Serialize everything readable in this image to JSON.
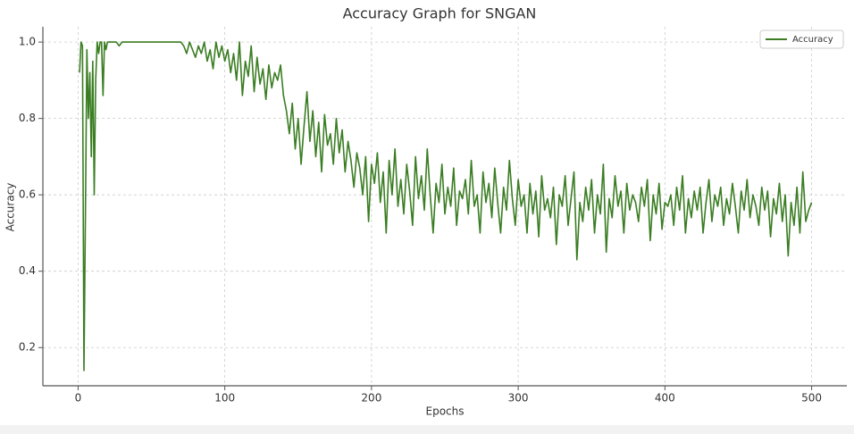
{
  "chart_data": {
    "type": "line",
    "title": "Accuracy Graph for SNGAN",
    "xlabel": "Epochs",
    "ylabel": "Accuracy",
    "x": [
      1,
      2,
      3,
      4,
      5,
      6,
      7,
      8,
      9,
      10,
      11,
      12,
      13,
      14,
      15,
      16,
      17,
      18,
      19,
      20,
      22,
      24,
      26,
      28,
      30,
      32,
      34,
      36,
      38,
      40,
      42,
      44,
      46,
      48,
      50,
      52,
      54,
      56,
      58,
      60,
      62,
      64,
      66,
      68,
      70,
      72,
      74,
      76,
      78,
      80,
      82,
      84,
      86,
      88,
      90,
      92,
      94,
      96,
      98,
      100,
      102,
      104,
      106,
      108,
      110,
      112,
      114,
      116,
      118,
      120,
      122,
      124,
      126,
      128,
      130,
      132,
      134,
      136,
      138,
      140,
      142,
      144,
      146,
      148,
      150,
      152,
      154,
      156,
      158,
      160,
      162,
      164,
      166,
      168,
      170,
      172,
      174,
      176,
      178,
      180,
      182,
      184,
      186,
      188,
      190,
      192,
      194,
      196,
      198,
      200,
      202,
      204,
      206,
      208,
      210,
      212,
      214,
      216,
      218,
      220,
      222,
      224,
      226,
      228,
      230,
      232,
      234,
      236,
      238,
      240,
      242,
      244,
      246,
      248,
      250,
      252,
      254,
      256,
      258,
      260,
      262,
      264,
      266,
      268,
      270,
      272,
      274,
      276,
      278,
      280,
      282,
      284,
      286,
      288,
      290,
      292,
      294,
      296,
      298,
      300,
      302,
      304,
      306,
      308,
      310,
      312,
      314,
      316,
      318,
      320,
      322,
      324,
      326,
      328,
      330,
      332,
      334,
      336,
      338,
      340,
      342,
      344,
      346,
      348,
      350,
      352,
      354,
      356,
      358,
      360,
      362,
      364,
      366,
      368,
      370,
      372,
      374,
      376,
      378,
      380,
      382,
      384,
      386,
      388,
      390,
      392,
      394,
      396,
      398,
      400,
      402,
      404,
      406,
      408,
      410,
      412,
      414,
      416,
      418,
      420,
      422,
      424,
      426,
      428,
      430,
      432,
      434,
      436,
      438,
      440,
      442,
      444,
      446,
      448,
      450,
      452,
      454,
      456,
      458,
      460,
      462,
      464,
      466,
      468,
      470,
      472,
      474,
      476,
      478,
      480,
      482,
      484,
      486,
      488,
      490,
      492,
      494,
      496,
      498,
      500
    ],
    "series": [
      {
        "name": "Accuracy",
        "color": "#3a7d22",
        "values": [
          0.92,
          1,
          0.99,
          0.14,
          0.55,
          0.98,
          0.8,
          0.92,
          0.7,
          0.95,
          0.6,
          0.9,
          1,
          0.97,
          1,
          1,
          0.86,
          1,
          0.98,
          1,
          1,
          1,
          1,
          0.99,
          1,
          1,
          1,
          1,
          1,
          1,
          1,
          1,
          1,
          1,
          1,
          1,
          1,
          1,
          1,
          1,
          1,
          1,
          1,
          1,
          1,
          0.99,
          0.97,
          1,
          0.98,
          0.96,
          0.99,
          0.97,
          1,
          0.95,
          0.98,
          0.93,
          1,
          0.96,
          0.99,
          0.95,
          0.98,
          0.92,
          0.97,
          0.9,
          1,
          0.86,
          0.95,
          0.91,
          0.99,
          0.87,
          0.96,
          0.89,
          0.93,
          0.85,
          0.94,
          0.88,
          0.92,
          0.9,
          0.94,
          0.86,
          0.82,
          0.76,
          0.84,
          0.72,
          0.8,
          0.68,
          0.78,
          0.87,
          0.74,
          0.82,
          0.7,
          0.79,
          0.66,
          0.81,
          0.73,
          0.76,
          0.68,
          0.8,
          0.71,
          0.77,
          0.66,
          0.74,
          0.69,
          0.62,
          0.71,
          0.67,
          0.6,
          0.7,
          0.53,
          0.68,
          0.63,
          0.71,
          0.58,
          0.66,
          0.5,
          0.69,
          0.6,
          0.72,
          0.57,
          0.64,
          0.55,
          0.68,
          0.61,
          0.52,
          0.7,
          0.59,
          0.65,
          0.56,
          0.72,
          0.6,
          0.5,
          0.63,
          0.58,
          0.68,
          0.55,
          0.62,
          0.57,
          0.67,
          0.52,
          0.61,
          0.59,
          0.64,
          0.55,
          0.69,
          0.57,
          0.6,
          0.5,
          0.66,
          0.58,
          0.63,
          0.54,
          0.67,
          0.58,
          0.5,
          0.62,
          0.56,
          0.69,
          0.59,
          0.52,
          0.64,
          0.57,
          0.6,
          0.5,
          0.63,
          0.55,
          0.61,
          0.49,
          0.65,
          0.56,
          0.59,
          0.54,
          0.62,
          0.47,
          0.6,
          0.57,
          0.65,
          0.52,
          0.59,
          0.66,
          0.43,
          0.58,
          0.53,
          0.62,
          0.56,
          0.64,
          0.5,
          0.6,
          0.55,
          0.68,
          0.45,
          0.59,
          0.54,
          0.65,
          0.57,
          0.61,
          0.5,
          0.63,
          0.56,
          0.6,
          0.58,
          0.53,
          0.62,
          0.57,
          0.64,
          0.48,
          0.6,
          0.55,
          0.63,
          0.51,
          0.58,
          0.57,
          0.6,
          0.52,
          0.62,
          0.56,
          0.65,
          0.5,
          0.59,
          0.54,
          0.61,
          0.56,
          0.62,
          0.5,
          0.58,
          0.64,
          0.53,
          0.6,
          0.57,
          0.62,
          0.52,
          0.59,
          0.55,
          0.63,
          0.57,
          0.5,
          0.61,
          0.56,
          0.64,
          0.54,
          0.6,
          0.57,
          0.52,
          0.62,
          0.56,
          0.61,
          0.49,
          0.59,
          0.55,
          0.63,
          0.53,
          0.6,
          0.44,
          0.58,
          0.52,
          0.62,
          0.5,
          0.66,
          0.53,
          0.56,
          0.58
        ]
      }
    ],
    "xlim": [
      -24,
      524
    ],
    "ylim": [
      0.1,
      1.04
    ],
    "xticks": [
      0,
      100,
      200,
      300,
      400,
      500
    ],
    "yticks": [
      0.2,
      0.4,
      0.6,
      0.8,
      {
        "value": 1,
        "label": "1.0"
      }
    ],
    "grid": true,
    "legend": "upper right"
  }
}
